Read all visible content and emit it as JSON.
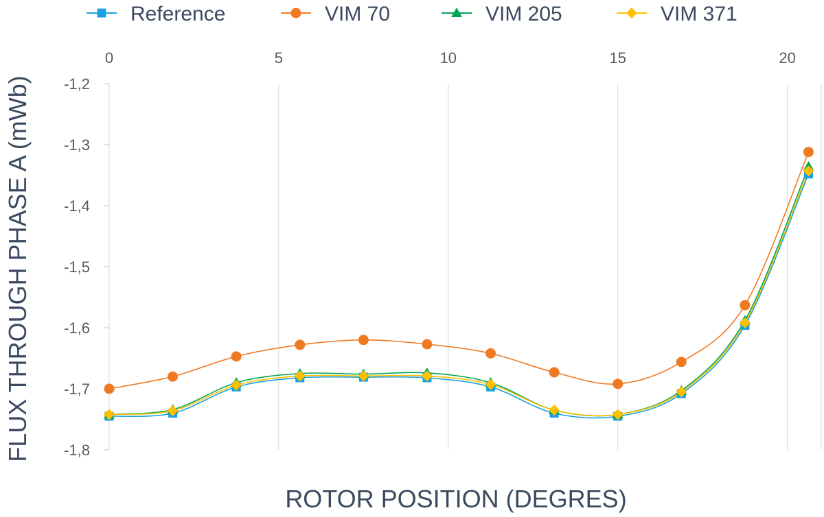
{
  "chart_data": {
    "type": "line",
    "xlabel": "ROTOR POSITION (DEGRES)",
    "ylabel": "FLUX THROUGH PHASE A (mWb)",
    "xlim": [
      0,
      21
    ],
    "ylim": [
      -1.8,
      -1.2
    ],
    "x_ticks": [
      "0",
      "5",
      "10",
      "15",
      "20"
    ],
    "y_ticks": [
      "-1,2",
      "-1,3",
      "-1,4",
      "-1,5",
      "-1,6",
      "-1,7",
      "-1,8"
    ],
    "x_axis_position": "top",
    "grid": "vertical",
    "legend_position": "top",
    "x": [
      0,
      1.875,
      3.75,
      5.625,
      7.5,
      9.375,
      11.25,
      13.125,
      15,
      16.875,
      18.75,
      20.625
    ],
    "series": [
      {
        "name": "Reference",
        "color": "#1ca0e0",
        "marker": "square",
        "values": [
          -1.745,
          -1.74,
          -1.697,
          -1.682,
          -1.681,
          -1.682,
          -1.697,
          -1.74,
          -1.745,
          -1.708,
          -1.596,
          -1.348
        ]
      },
      {
        "name": "VIM 70",
        "color": "#f07a22",
        "marker": "circle",
        "values": [
          -1.7,
          -1.68,
          -1.647,
          -1.628,
          -1.62,
          -1.627,
          -1.642,
          -1.673,
          -1.692,
          -1.656,
          -1.563,
          -1.312
        ]
      },
      {
        "name": "VIM 205",
        "color": "#00a651",
        "marker": "triangle",
        "values": [
          -1.742,
          -1.734,
          -1.69,
          -1.675,
          -1.676,
          -1.674,
          -1.69,
          -1.735,
          -1.742,
          -1.703,
          -1.588,
          -1.336
        ]
      },
      {
        "name": "VIM 371",
        "color": "#ffc000",
        "marker": "diamond",
        "values": [
          -1.742,
          -1.736,
          -1.694,
          -1.679,
          -1.679,
          -1.679,
          -1.693,
          -1.735,
          -1.742,
          -1.705,
          -1.592,
          -1.343
        ]
      }
    ]
  }
}
